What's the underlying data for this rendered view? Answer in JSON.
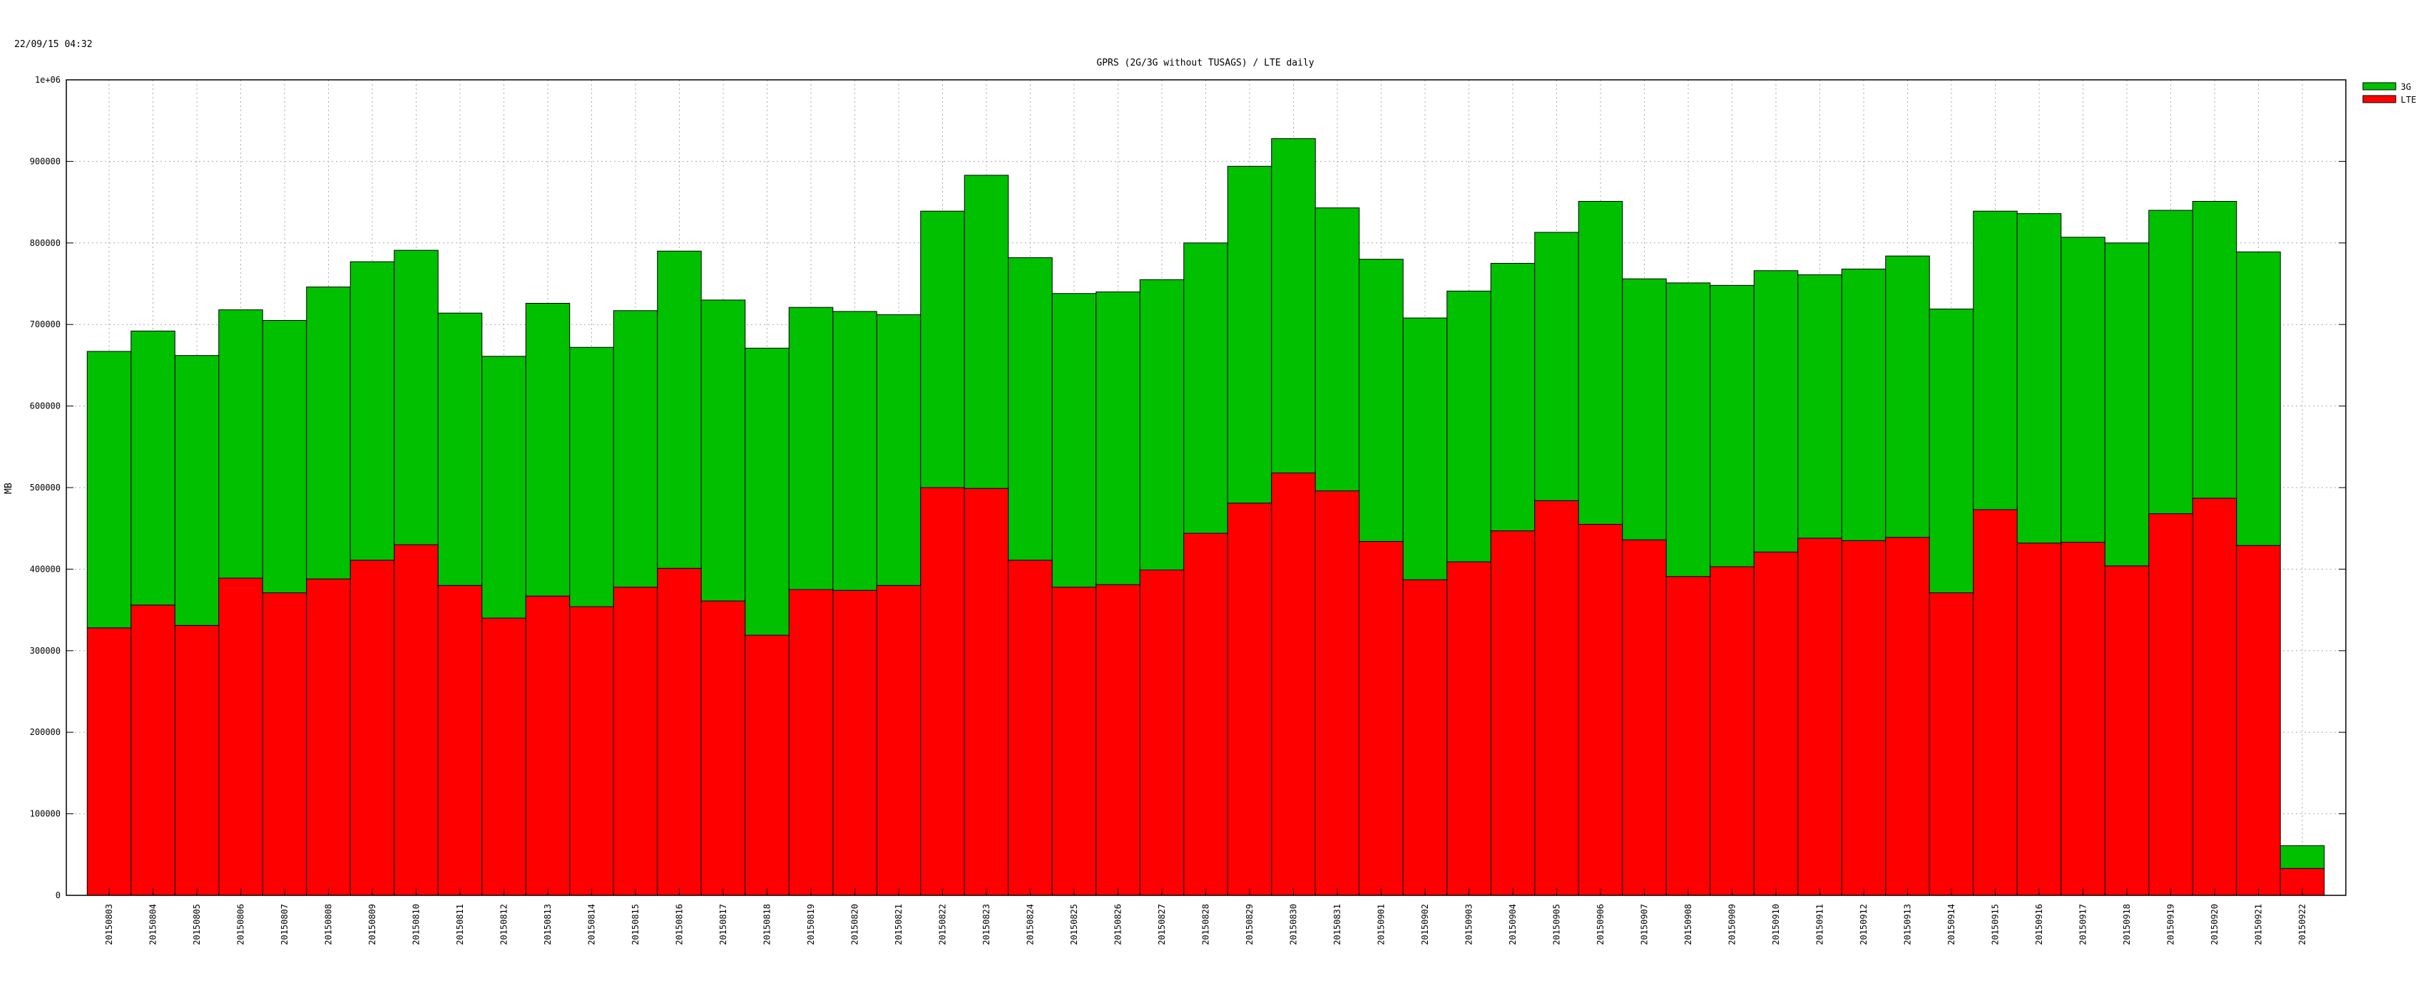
{
  "timestamp": "22/09/15 04:32",
  "chart_data": {
    "type": "bar",
    "stacked": true,
    "title": "GPRS (2G/3G without TUSAGS) / LTE daily",
    "xlabel": "",
    "ylabel": "MB",
    "ylim": [
      0,
      1000000
    ],
    "yticks": [
      "0",
      "100000",
      "200000",
      "300000",
      "400000",
      "500000",
      "600000",
      "700000",
      "800000",
      "900000",
      "1e+06"
    ],
    "grid": true,
    "legend_position": "top-right",
    "categories": [
      "20150803",
      "20150804",
      "20150805",
      "20150806",
      "20150807",
      "20150808",
      "20150809",
      "20150810",
      "20150811",
      "20150812",
      "20150813",
      "20150814",
      "20150815",
      "20150816",
      "20150817",
      "20150818",
      "20150819",
      "20150820",
      "20150821",
      "20150822",
      "20150823",
      "20150824",
      "20150825",
      "20150826",
      "20150827",
      "20150828",
      "20150829",
      "20150830",
      "20150831",
      "20150901",
      "20150902",
      "20150903",
      "20150904",
      "20150905",
      "20150906",
      "20150907",
      "20150908",
      "20150909",
      "20150910",
      "20150911",
      "20150912",
      "20150913",
      "20150914",
      "20150915",
      "20150916",
      "20150917",
      "20150918",
      "20150919",
      "20150920",
      "20150921",
      "20150922"
    ],
    "series": [
      {
        "name": "LTE",
        "color": "#ff0000",
        "values": [
          328000,
          356000,
          331000,
          389000,
          371000,
          388000,
          411000,
          430000,
          380000,
          340000,
          367000,
          354000,
          378000,
          401000,
          361000,
          319000,
          375000,
          374000,
          380000,
          500000,
          499000,
          411000,
          378000,
          381000,
          399000,
          444000,
          481000,
          518000,
          496000,
          434000,
          387000,
          409000,
          447000,
          484000,
          455000,
          436000,
          391000,
          403000,
          421000,
          438000,
          435000,
          439000,
          371000,
          473000,
          432000,
          433000,
          404000,
          468000,
          487000,
          429000,
          33000
        ]
      },
      {
        "name": "3G",
        "color": "#00c000",
        "values": [
          339000,
          336000,
          331000,
          329000,
          334000,
          358000,
          366000,
          361000,
          334000,
          321000,
          359000,
          318000,
          339000,
          389000,
          369000,
          352000,
          346000,
          342000,
          332000,
          339000,
          384000,
          371000,
          360000,
          359000,
          356000,
          356000,
          413000,
          410000,
          347000,
          346000,
          321000,
          332000,
          328000,
          329000,
          396000,
          320000,
          360000,
          345000,
          345000,
          323000,
          333000,
          345000,
          348000,
          366000,
          404000,
          374000,
          396000,
          372000,
          364000,
          360000,
          28000
        ]
      }
    ]
  }
}
